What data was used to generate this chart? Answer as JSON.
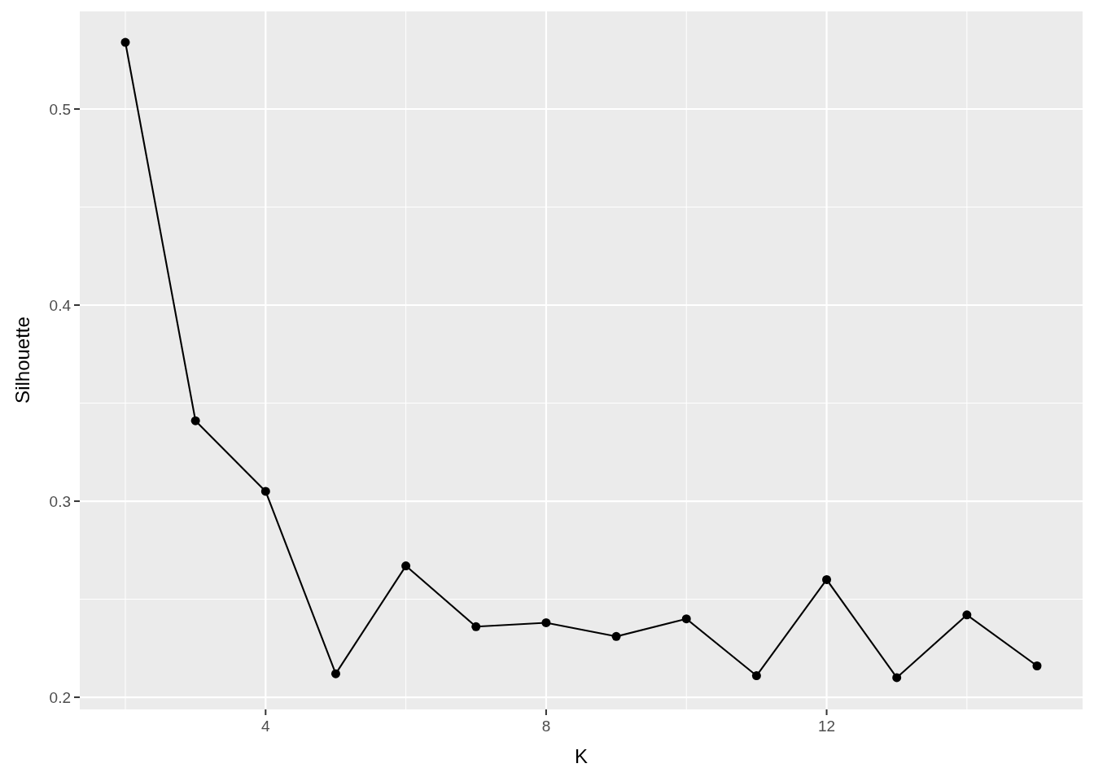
{
  "chart_data": {
    "type": "line",
    "xlabel": "K",
    "ylabel": "Silhouette",
    "x": [
      2,
      3,
      4,
      5,
      6,
      7,
      8,
      9,
      10,
      11,
      12,
      13,
      14,
      15
    ],
    "series": [
      {
        "color": "#000000",
        "values": [
          0.534,
          0.341,
          0.305,
          0.212,
          0.267,
          0.236,
          0.238,
          0.231,
          0.24,
          0.211,
          0.26,
          0.21,
          0.242,
          0.216
        ]
      }
    ],
    "xlim": [
      1.35,
      15.65
    ],
    "ylim": [
      0.1938,
      0.5502
    ],
    "xticks": [
      4,
      8,
      12
    ],
    "yticks": [
      0.2,
      0.3,
      0.4,
      0.5
    ],
    "grid": true,
    "marker": "circle",
    "line_style": "solid"
  }
}
